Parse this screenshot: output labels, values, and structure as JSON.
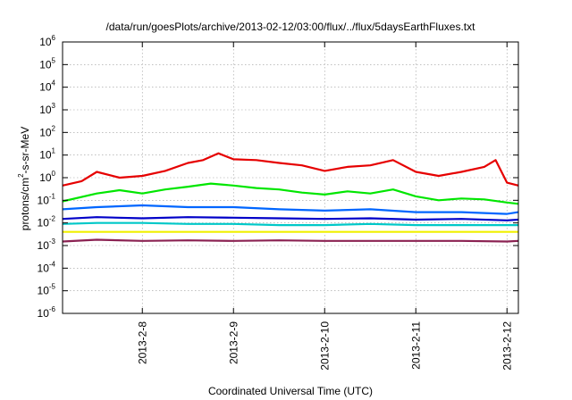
{
  "chart_data": {
    "type": "line",
    "title": "/data/run/goesPlots/archive/2013-02-12/03:00/flux/../flux/5daysEarthFluxes.txt",
    "xlabel": "Coordinated Universal Time (UTC)",
    "ylabel": "protons/cm²-s-sr-MeV",
    "ylabel_parts": [
      "protons/cm",
      "2",
      "-s-sr-MeV"
    ],
    "x_axis_type": "date",
    "xlim": [
      "2013-02-07 03:00",
      "2013-02-12 03:00"
    ],
    "y_scale": "log",
    "ylim": [
      1e-06,
      1000000.0
    ],
    "grid": true,
    "x_ticks": [
      {
        "value": "2013-02-08 00:00",
        "label": "2013-2-8"
      },
      {
        "value": "2013-02-09 00:00",
        "label": "2013-2-9"
      },
      {
        "value": "2013-02-10 00:00",
        "label": "2013-2-10"
      },
      {
        "value": "2013-02-11 00:00",
        "label": "2013-2-11"
      },
      {
        "value": "2013-02-12 00:00",
        "label": "2013-2-12"
      }
    ],
    "y_ticks": [
      {
        "value": 1e-06,
        "base": "10",
        "exp": "-6"
      },
      {
        "value": 1e-05,
        "base": "10",
        "exp": "-5"
      },
      {
        "value": 0.0001,
        "base": "10",
        "exp": "-4"
      },
      {
        "value": 0.001,
        "base": "10",
        "exp": "-3"
      },
      {
        "value": 0.01,
        "base": "10",
        "exp": "-2"
      },
      {
        "value": 0.1,
        "base": "10",
        "exp": "-1"
      },
      {
        "value": 1.0,
        "base": "10",
        "exp": "0"
      },
      {
        "value": 10.0,
        "base": "10",
        "exp": "1"
      },
      {
        "value": 100.0,
        "base": "10",
        "exp": "2"
      },
      {
        "value": 1000.0,
        "base": "10",
        "exp": "3"
      },
      {
        "value": 10000.0,
        "base": "10",
        "exp": "4"
      },
      {
        "value": 100000.0,
        "base": "10",
        "exp": "5"
      },
      {
        "value": 1000000.0,
        "base": "10",
        "exp": "6"
      }
    ],
    "series": [
      {
        "color": "#e60000",
        "x": [
          "2013-02-07 03:00",
          "2013-02-07 08:00",
          "2013-02-07 12:00",
          "2013-02-07 18:00",
          "2013-02-08 00:00",
          "2013-02-08 06:00",
          "2013-02-08 12:00",
          "2013-02-08 16:00",
          "2013-02-08 20:00",
          "2013-02-09 00:00",
          "2013-02-09 06:00",
          "2013-02-09 12:00",
          "2013-02-09 18:00",
          "2013-02-10 00:00",
          "2013-02-10 06:00",
          "2013-02-10 12:00",
          "2013-02-10 18:00",
          "2013-02-11 00:00",
          "2013-02-11 06:00",
          "2013-02-11 12:00",
          "2013-02-11 18:00",
          "2013-02-11 21:00",
          "2013-02-12 00:00",
          "2013-02-12 03:00"
        ],
        "y": [
          0.45,
          0.7,
          1.8,
          1.0,
          1.2,
          2.0,
          4.5,
          6.0,
          12.0,
          6.5,
          6.0,
          4.5,
          3.5,
          2.0,
          3.0,
          3.5,
          6.0,
          1.8,
          1.2,
          1.8,
          3.0,
          6.0,
          0.6,
          0.45
        ]
      },
      {
        "color": "#00e600",
        "x": [
          "2013-02-07 03:00",
          "2013-02-07 12:00",
          "2013-02-07 18:00",
          "2013-02-08 00:00",
          "2013-02-08 06:00",
          "2013-02-08 12:00",
          "2013-02-08 18:00",
          "2013-02-09 00:00",
          "2013-02-09 06:00",
          "2013-02-09 12:00",
          "2013-02-09 18:00",
          "2013-02-10 00:00",
          "2013-02-10 06:00",
          "2013-02-10 12:00",
          "2013-02-10 18:00",
          "2013-02-11 00:00",
          "2013-02-11 06:00",
          "2013-02-11 12:00",
          "2013-02-11 18:00",
          "2013-02-12 00:00",
          "2013-02-12 03:00"
        ],
        "y": [
          0.09,
          0.2,
          0.28,
          0.2,
          0.3,
          0.4,
          0.55,
          0.45,
          0.35,
          0.3,
          0.22,
          0.18,
          0.25,
          0.2,
          0.3,
          0.15,
          0.1,
          0.12,
          0.11,
          0.08,
          0.07
        ]
      },
      {
        "color": "#0066ff",
        "x": [
          "2013-02-07 03:00",
          "2013-02-07 12:00",
          "2013-02-08 00:00",
          "2013-02-08 12:00",
          "2013-02-09 00:00",
          "2013-02-09 12:00",
          "2013-02-10 00:00",
          "2013-02-10 12:00",
          "2013-02-11 00:00",
          "2013-02-11 12:00",
          "2013-02-12 00:00",
          "2013-02-12 03:00"
        ],
        "y": [
          0.04,
          0.05,
          0.06,
          0.05,
          0.05,
          0.04,
          0.035,
          0.04,
          0.03,
          0.03,
          0.025,
          0.03
        ]
      },
      {
        "color": "#0000c8",
        "x": [
          "2013-02-07 03:00",
          "2013-02-07 12:00",
          "2013-02-08 00:00",
          "2013-02-08 12:00",
          "2013-02-09 00:00",
          "2013-02-09 12:00",
          "2013-02-10 00:00",
          "2013-02-10 12:00",
          "2013-02-11 00:00",
          "2013-02-11 12:00",
          "2013-02-12 00:00",
          "2013-02-12 03:00"
        ],
        "y": [
          0.015,
          0.018,
          0.016,
          0.018,
          0.017,
          0.016,
          0.015,
          0.016,
          0.014,
          0.015,
          0.013,
          0.014
        ]
      },
      {
        "color": "#00c8c8",
        "x": [
          "2013-02-07 03:00",
          "2013-02-07 12:00",
          "2013-02-08 00:00",
          "2013-02-08 12:00",
          "2013-02-09 00:00",
          "2013-02-09 12:00",
          "2013-02-10 00:00",
          "2013-02-10 12:00",
          "2013-02-11 00:00",
          "2013-02-11 12:00",
          "2013-02-12 00:00",
          "2013-02-12 03:00"
        ],
        "y": [
          0.009,
          0.01,
          0.01,
          0.009,
          0.009,
          0.008,
          0.008,
          0.009,
          0.008,
          0.008,
          0.008,
          0.008
        ]
      },
      {
        "color": "#f0f000",
        "x": [
          "2013-02-07 03:00",
          "2013-02-07 12:00",
          "2013-02-08 00:00",
          "2013-02-08 12:00",
          "2013-02-09 00:00",
          "2013-02-09 12:00",
          "2013-02-10 00:00",
          "2013-02-10 12:00",
          "2013-02-11 00:00",
          "2013-02-11 12:00",
          "2013-02-12 00:00",
          "2013-02-12 03:00"
        ],
        "y": [
          0.004,
          0.004,
          0.004,
          0.004,
          0.004,
          0.004,
          0.004,
          0.004,
          0.004,
          0.004,
          0.004,
          0.004
        ]
      },
      {
        "color": "#8b2252",
        "x": [
          "2013-02-07 03:00",
          "2013-02-07 12:00",
          "2013-02-08 00:00",
          "2013-02-08 12:00",
          "2013-02-09 00:00",
          "2013-02-09 12:00",
          "2013-02-10 00:00",
          "2013-02-10 12:00",
          "2013-02-11 00:00",
          "2013-02-11 12:00",
          "2013-02-12 00:00",
          "2013-02-12 03:00"
        ],
        "y": [
          0.0015,
          0.0018,
          0.0016,
          0.0017,
          0.0016,
          0.0017,
          0.0016,
          0.0016,
          0.0016,
          0.0016,
          0.0015,
          0.0016
        ]
      }
    ]
  }
}
